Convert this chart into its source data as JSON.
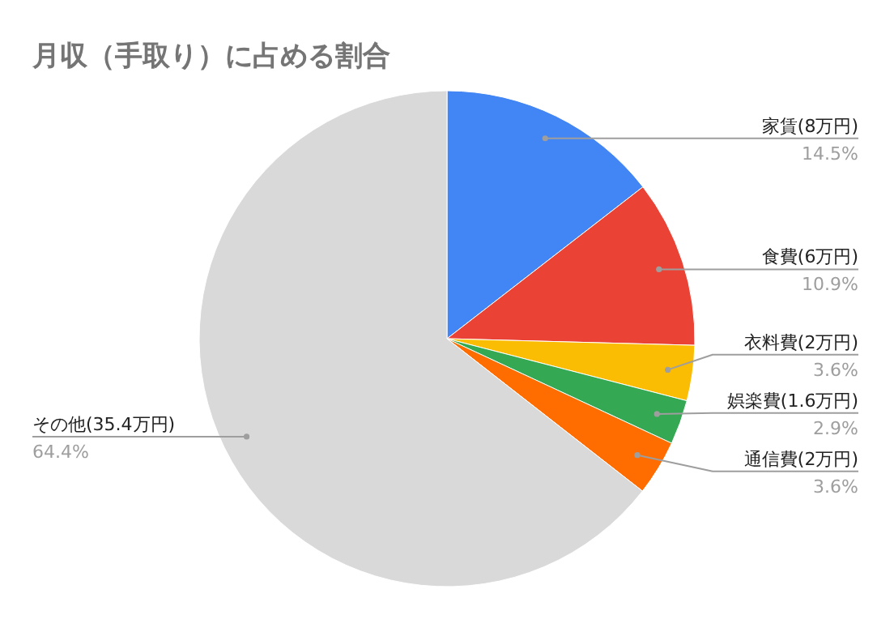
{
  "chart_data": {
    "type": "pie",
    "title": "月収（手取り）に占める割合",
    "categories": [
      "家賃(8万円)",
      "食費(6万円)",
      "衣料費(2万円)",
      "娯楽費(1.6万円)",
      "通信費(2万円)",
      "その他(35.4万円)"
    ],
    "values": [
      14.5,
      10.9,
      3.6,
      2.9,
      3.6,
      64.4
    ],
    "value_labels": [
      "14.5%",
      "10.9%",
      "3.6%",
      "2.9%",
      "3.6%",
      "64.4%"
    ],
    "colors": [
      "#4285f4",
      "#ea4335",
      "#fbbc04",
      "#34a853",
      "#ff6d01",
      "#d9d9d9"
    ]
  }
}
